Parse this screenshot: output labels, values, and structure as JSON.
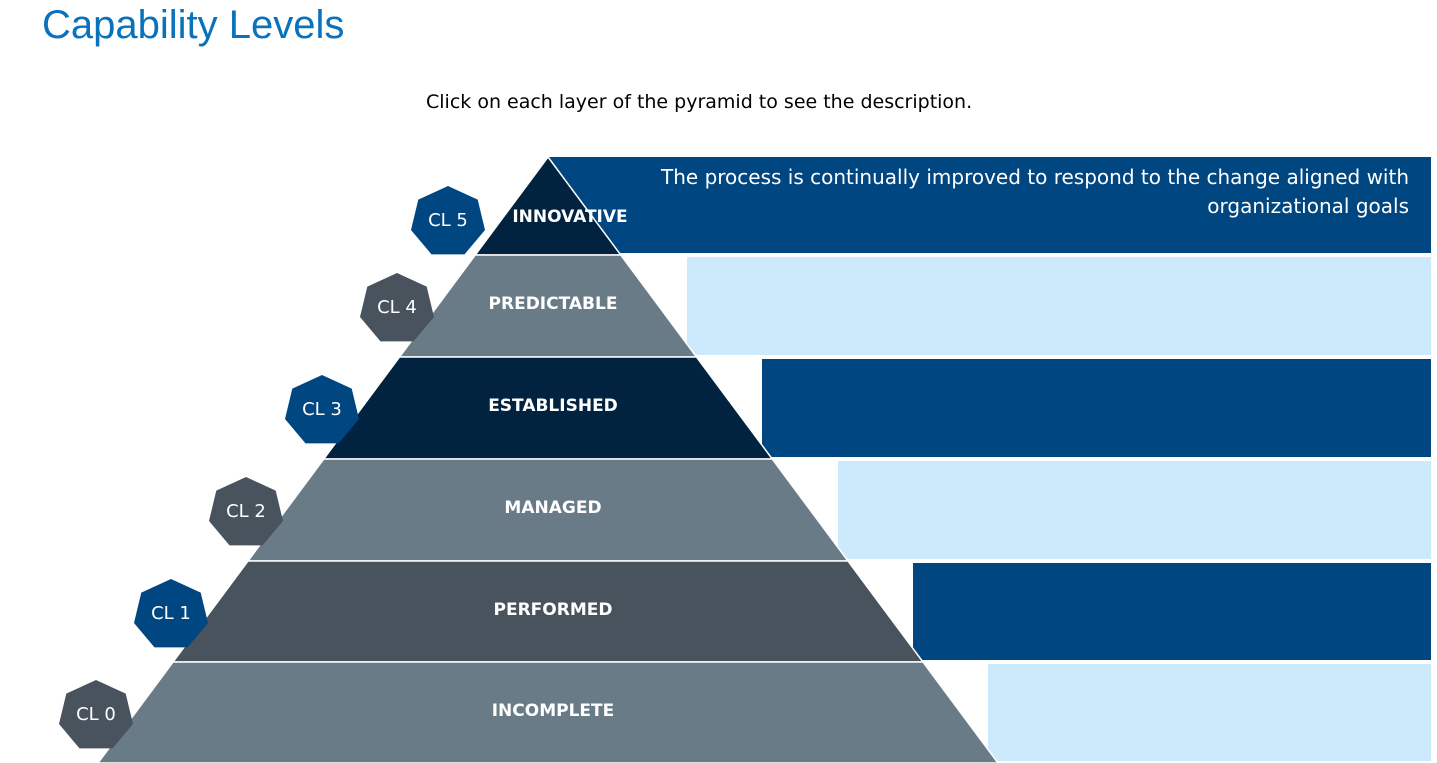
{
  "title": "Capability Levels",
  "instruction": "Click on each layer of the pyramid to see the description.",
  "colors": {
    "title": "#0a72bd",
    "band_dark": "#004680",
    "band_light": "#cdeafd",
    "layer_dark": "#012340",
    "layer_mid": "#6a7b88",
    "layer_slate": "#48535d",
    "badge_blue": "#004680",
    "badge_slate": "#48535d"
  },
  "levels": [
    {
      "code": "CL 5",
      "name": "INNOVATIVE",
      "description": "The process is continually improved to respond to the change aligned with organizational goals",
      "layer_color": "#012340",
      "band_color": "#004680",
      "badge_color": "#004680"
    },
    {
      "code": "CL 4",
      "name": "PREDICTABLE",
      "description": "",
      "layer_color": "#6a7b88",
      "band_color": "#cdeafd",
      "badge_color": "#48535d"
    },
    {
      "code": "CL 3",
      "name": "ESTABLISHED",
      "description": "",
      "layer_color": "#012340",
      "band_color": "#004680",
      "badge_color": "#004680"
    },
    {
      "code": "CL 2",
      "name": "MANAGED",
      "description": "",
      "layer_color": "#6a7b88",
      "band_color": "#cdeafd",
      "badge_color": "#48535d"
    },
    {
      "code": "CL 1",
      "name": "PERFORMED",
      "description": "",
      "layer_color": "#48535d",
      "band_color": "#004680",
      "badge_color": "#004680"
    },
    {
      "code": "CL 0",
      "name": "INCOMPLETE",
      "description": "",
      "layer_color": "#6a7b88",
      "band_color": "#cdeafd",
      "badge_color": "#48535d"
    }
  ]
}
